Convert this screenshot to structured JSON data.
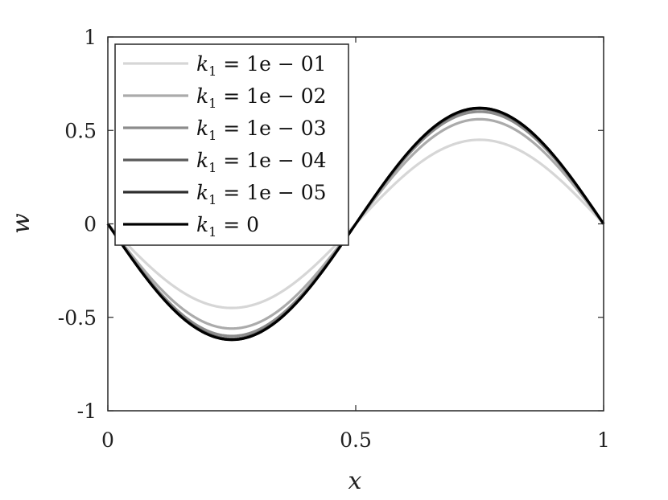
{
  "chart_data": {
    "type": "line",
    "xlabel": "x",
    "ylabel": "w",
    "xlim": [
      0,
      1
    ],
    "ylim": [
      -1,
      1
    ],
    "xticks": [
      0,
      0.5,
      1
    ],
    "xtick_labels": [
      "0",
      "0.5",
      "1"
    ],
    "yticks": [
      -1,
      -0.5,
      0,
      0.5,
      1
    ],
    "ytick_labels": [
      "-1",
      "-0.5",
      "0",
      "0.5",
      "1"
    ],
    "grid": false,
    "legend_position": "top-left",
    "curve": "sine-like wave crossing zero at x = 0, 0.5, 1; minimum near x = 0.25, maximum near x = 0.75",
    "series": [
      {
        "name": "k_1 = 1e-01",
        "legend": {
          "var": "k",
          "sub": "1",
          "value": " = 1e − 01"
        },
        "color": "#d6d6d6",
        "amplitude": 0.45,
        "x_peak": [
          0.25,
          0.75
        ],
        "y_peak": [
          -0.45,
          0.45
        ]
      },
      {
        "name": "k_1 = 1e-02",
        "legend": {
          "var": "k",
          "sub": "1",
          "value": " = 1e − 02"
        },
        "color": "#ababab",
        "amplitude": 0.56,
        "x_peak": [
          0.25,
          0.75
        ],
        "y_peak": [
          -0.56,
          0.56
        ]
      },
      {
        "name": "k_1 = 1e-03",
        "legend": {
          "var": "k",
          "sub": "1",
          "value": " = 1e − 03"
        },
        "color": "#8c8c8c",
        "amplitude": 0.6,
        "x_peak": [
          0.25,
          0.75
        ],
        "y_peak": [
          -0.6,
          0.6
        ]
      },
      {
        "name": "k_1 = 1e-04",
        "legend": {
          "var": "k",
          "sub": "1",
          "value": " = 1e − 04"
        },
        "color": "#5a5a5a",
        "amplitude": 0.615,
        "x_peak": [
          0.25,
          0.75
        ],
        "y_peak": [
          -0.615,
          0.615
        ]
      },
      {
        "name": "k_1 = 1e-05",
        "legend": {
          "var": "k",
          "sub": "1",
          "value": " = 1e − 05"
        },
        "color": "#2e2e2e",
        "amplitude": 0.62,
        "x_peak": [
          0.25,
          0.75
        ],
        "y_peak": [
          -0.62,
          0.62
        ]
      },
      {
        "name": "k_1 = 0",
        "legend": {
          "var": "k",
          "sub": "1",
          "value": " = 0"
        },
        "color": "#000000",
        "amplitude": 0.62,
        "x_peak": [
          0.25,
          0.75
        ],
        "y_peak": [
          -0.62,
          0.62
        ]
      }
    ]
  }
}
